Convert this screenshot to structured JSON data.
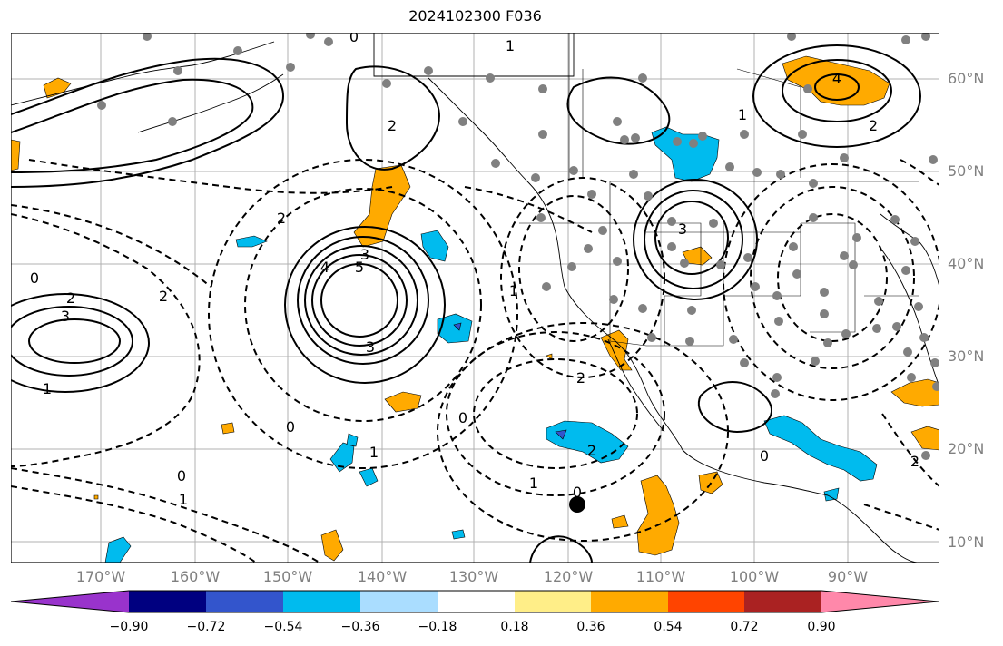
{
  "title": "2024102300 F036",
  "lat_labels": [
    "60°N",
    "50°N",
    "40°N",
    "30°N",
    "20°N",
    "10°N"
  ],
  "lon_labels": [
    "170°W",
    "160°W",
    "150°W",
    "140°W",
    "130°W",
    "120°W",
    "110°W",
    "100°W",
    "90°W"
  ],
  "colorbar": {
    "ticks": [
      "−0.90",
      "−0.72",
      "−0.54",
      "−0.36",
      "−0.18",
      "0.18",
      "0.36",
      "0.54",
      "0.72",
      "0.90"
    ],
    "colors": [
      "#9933cc",
      "#000080",
      "#3355cc",
      "#00bbee",
      "#aaddff",
      "#ffffff",
      "#ffee88",
      "#ffaa00",
      "#ff4400",
      "#aa2222",
      "#ff88aa"
    ]
  },
  "contour_labels": [
    "0",
    "1",
    "2",
    "3",
    "4",
    "5",
    "0",
    "1",
    "2",
    "3",
    "0",
    "1",
    "2",
    "0",
    "1",
    "2",
    "0",
    "1",
    "2",
    "3",
    "2",
    "1",
    "0",
    "3",
    "4",
    "2",
    "0",
    "1",
    "2"
  ],
  "colors": {
    "shade_orange": "#ffaa00",
    "shade_cyan": "#00bbee",
    "shade_blue": "#3355cc",
    "station": "#808080",
    "marker": "#000000",
    "grid": "#b0b0b0"
  }
}
